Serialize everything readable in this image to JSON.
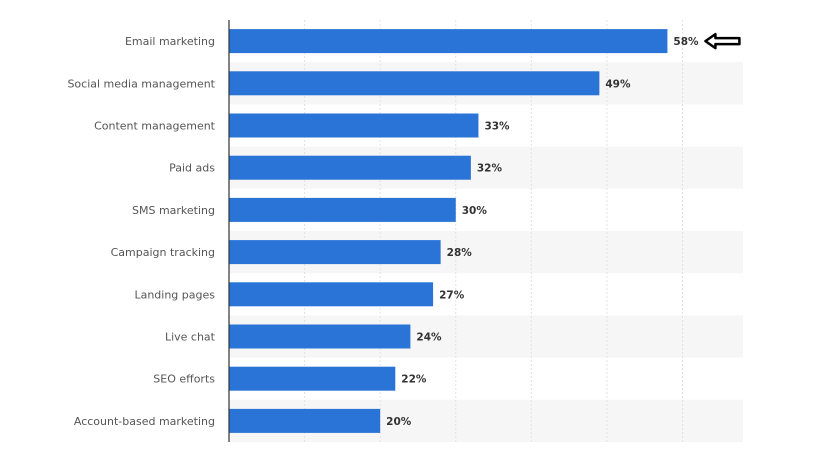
{
  "chart_data": {
    "type": "bar",
    "orientation": "horizontal",
    "categories": [
      "Email marketing",
      "Social media management",
      "Content management",
      "Paid ads",
      "SMS marketing",
      "Campaign tracking",
      "Landing pages",
      "Live chat",
      "SEO efforts",
      "Account-based marketing"
    ],
    "values": [
      58,
      49,
      33,
      32,
      30,
      28,
      27,
      24,
      22,
      20
    ],
    "data_labels": [
      "58%",
      "49%",
      "33%",
      "32%",
      "30%",
      "28%",
      "27%",
      "24%",
      "22%",
      "20%"
    ],
    "title": "",
    "xlabel": "",
    "ylabel": "",
    "xlim": [
      0,
      68
    ],
    "grid": true,
    "grid_step": 10,
    "bar_color": "#2a74d8",
    "annotation": "left-arrow-icon pointing at Email marketing 58%"
  }
}
